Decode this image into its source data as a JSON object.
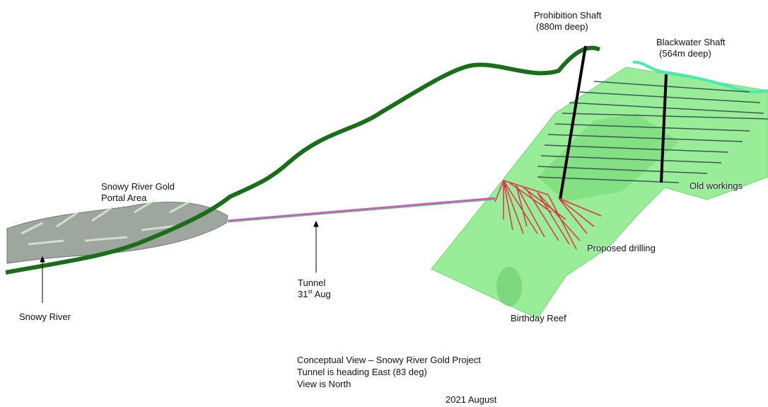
{
  "labels": {
    "prohibition_shaft": {
      "line1": "Prohibition Shaft",
      "line2": "(880m deep)"
    },
    "blackwater_shaft": {
      "line1": "Blackwater Shaft",
      "line2": "(564m deep)"
    },
    "portal_area": {
      "line1": "Snowy River Gold",
      "line2": "Portal Area"
    },
    "old_workings": "Old workings",
    "proposed_drilling": "Proposed drilling",
    "tunnel": {
      "line1": "Tunnel",
      "day": "31",
      "suffix": "st",
      "month": "Aug"
    },
    "snowy_river": "Snowy River",
    "birthday_reef": "Birthday Reef"
  },
  "caption": {
    "line1": "Conceptual View – Snowy River Gold Project",
    "line2": "Tunnel is heading East (83 deg)",
    "line3": "View is North"
  },
  "date": "2021 August",
  "colors": {
    "river": "#1a6e1a",
    "reef_plane": "#7fe87f",
    "shafts": "#000000",
    "drill_holes": "#e0304a",
    "old_workings": "#3a5a50",
    "blackwater_river": "#4de8b0",
    "tunnel": "#c060c0"
  }
}
